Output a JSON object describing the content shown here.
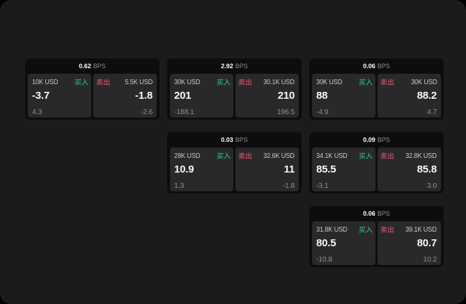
{
  "page": {
    "outer_background": "#000000",
    "panel_background": "#1b1b1c"
  },
  "colors": {
    "buy_green": "#35b273",
    "sell_red": "#cb4f67",
    "card_background": "#0d0d0e",
    "tile_background": "#29292b",
    "value_white": "#f7f7f8",
    "muted_gray": "#8f8f92"
  },
  "labels": {
    "bps_unit": "BPS",
    "buy": "买入",
    "sell": "卖出"
  },
  "cards": [
    {
      "bps": "0.62",
      "grid_row": 0,
      "grid_col": 0,
      "buy": {
        "amount": "10K USD",
        "value": "-3.7",
        "delta": "4.3"
      },
      "sell": {
        "amount": "5.5K USD",
        "value": "-1.8",
        "delta": "-2.6"
      }
    },
    {
      "bps": "2.92",
      "grid_row": 0,
      "grid_col": 1,
      "buy": {
        "amount": "30K USD",
        "value": "201",
        "delta": "-188.1"
      },
      "sell": {
        "amount": "30.1K USD",
        "value": "210",
        "delta": "196.5"
      }
    },
    {
      "bps": "0.06",
      "grid_row": 0,
      "grid_col": 2,
      "buy": {
        "amount": "30K USD",
        "value": "88",
        "delta": "-4.9"
      },
      "sell": {
        "amount": "30K USD",
        "value": "88.2",
        "delta": "4.7"
      }
    },
    {
      "bps": "0.03",
      "grid_row": 1,
      "grid_col": 1,
      "buy": {
        "amount": "28K USD",
        "value": "10.9",
        "delta": "1.3"
      },
      "sell": {
        "amount": "32.6K USD",
        "value": "11",
        "delta": "-1.8"
      }
    },
    {
      "bps": "0.09",
      "grid_row": 1,
      "grid_col": 2,
      "buy": {
        "amount": "34.1K USD",
        "value": "85.5",
        "delta": "-3.1"
      },
      "sell": {
        "amount": "32.8K USD",
        "value": "85.8",
        "delta": "3.0"
      }
    },
    {
      "bps": "0.06",
      "grid_row": 2,
      "grid_col": 2,
      "buy": {
        "amount": "31.8K USD",
        "value": "80.5",
        "delta": "-10.8"
      },
      "sell": {
        "amount": "39.1K USD",
        "value": "80.7",
        "delta": "10.2"
      }
    }
  ]
}
